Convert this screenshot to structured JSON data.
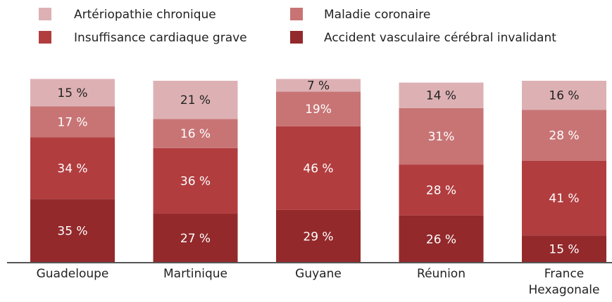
{
  "chart_data": {
    "type": "stacked_bar",
    "categories": [
      "Guadeloupe",
      "Martinique",
      "Guyane",
      "Réunion",
      "France Hexagonale"
    ],
    "ylim": [
      0,
      100
    ],
    "series": [
      {
        "name": "Artériopathie chronique",
        "color": "#ddb1b4",
        "values": [
          15,
          21,
          7,
          14,
          16
        ],
        "value_labels": [
          "15 %",
          "21 %",
          "7 %",
          "14 %",
          "16 %"
        ]
      },
      {
        "name": "Maladie coronaire",
        "color": "#c87475",
        "values": [
          17,
          16,
          19,
          31,
          28
        ],
        "value_labels": [
          "17 %",
          "16 %",
          "19%",
          "31%",
          "28 %"
        ]
      },
      {
        "name": "Insuffisance cardiaque grave",
        "color": "#b23d3f",
        "values": [
          34,
          36,
          46,
          28,
          41
        ],
        "value_labels": [
          "34 %",
          "36 %",
          "46 %",
          "28 %",
          "41 %"
        ]
      },
      {
        "name": "Accident vasculaire cérébral invalidant",
        "color": "#93292b",
        "values": [
          35,
          27,
          29,
          26,
          15
        ],
        "value_labels": [
          "35 %",
          "27 %",
          "29 %",
          "26 %",
          "15 %"
        ]
      }
    ]
  }
}
